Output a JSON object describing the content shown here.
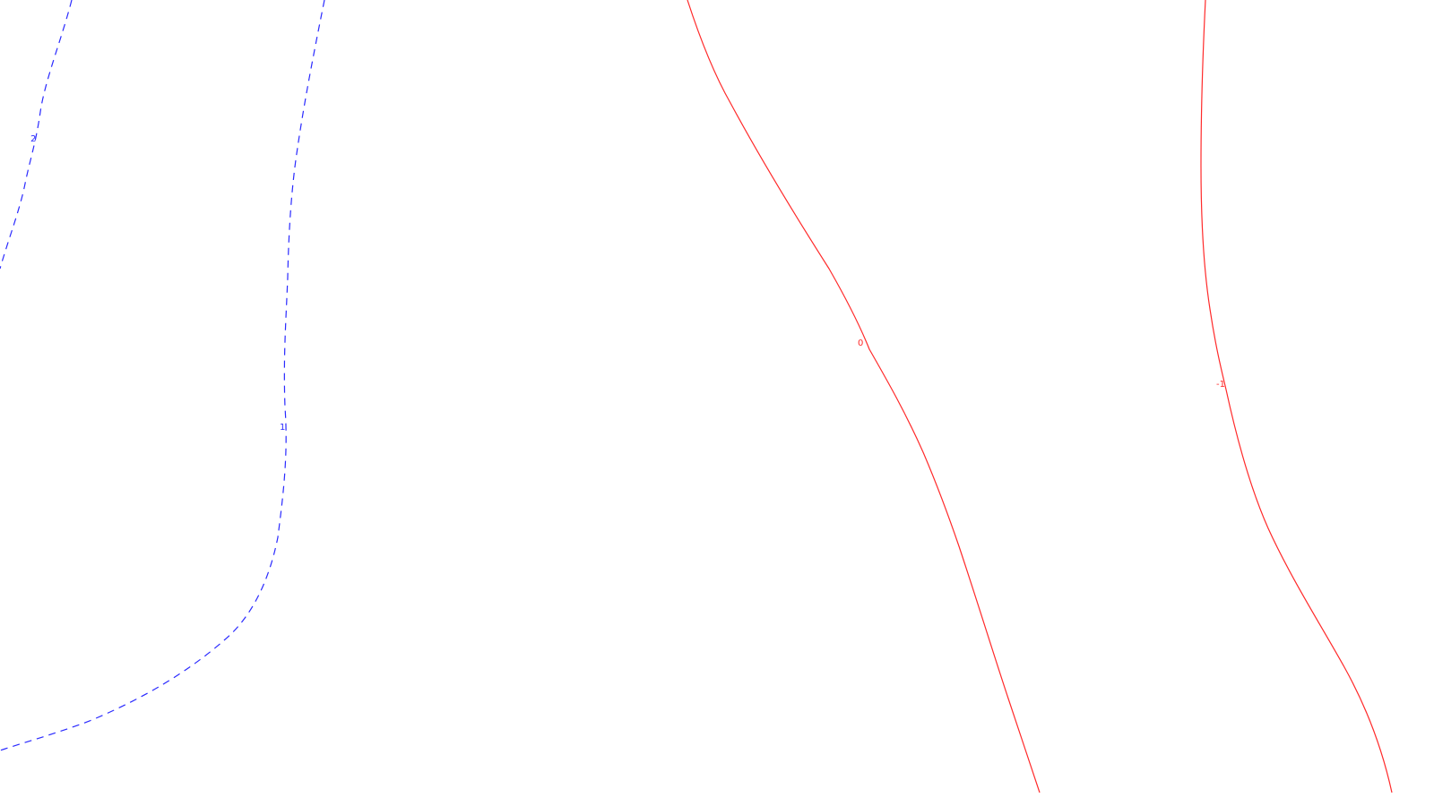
{
  "contours": [
    {
      "id": "contour-2",
      "level_label": "2",
      "style": "dashed",
      "color": "#2a2aff"
    },
    {
      "id": "contour-1",
      "level_label": "1",
      "style": "dashed",
      "color": "#2a2aff"
    },
    {
      "id": "contour-0",
      "level_label": "0",
      "style": "solid",
      "color": "#ff2a2a"
    },
    {
      "id": "contour-neg1",
      "level_label": "-1",
      "style": "solid",
      "color": "#ff2a2a"
    }
  ]
}
